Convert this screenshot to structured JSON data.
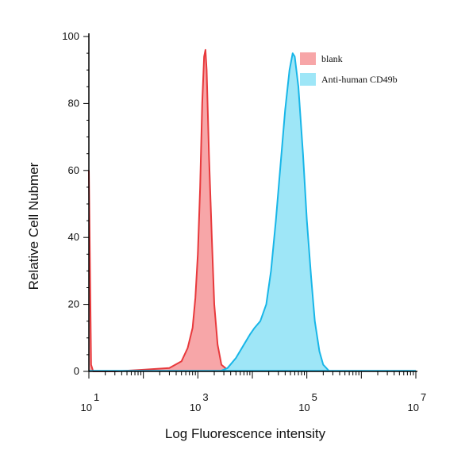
{
  "chart_data": {
    "type": "area",
    "title": "",
    "xlabel": "Log Fluorescence intensity",
    "ylabel": "Relative Cell Nubmer",
    "x_scale": "log",
    "xlim": [
      10,
      10000000
    ],
    "ylim": [
      0,
      100
    ],
    "x_ticks": [
      {
        "value": 10,
        "base": "10",
        "exp": "1"
      },
      {
        "value": 1000,
        "base": "10",
        "exp": "3"
      },
      {
        "value": 100000,
        "base": "10",
        "exp": "5"
      },
      {
        "value": 10000000,
        "base": "10",
        "exp": "7"
      }
    ],
    "y_ticks": [
      0,
      20,
      40,
      60,
      80,
      100
    ],
    "legend_position": "top-right",
    "grid": false,
    "series": [
      {
        "name": "blank",
        "line_color": "#e8393c",
        "fill_color": "#f7a6a8",
        "points": [
          [
            10,
            60
          ],
          [
            11,
            2
          ],
          [
            12,
            0
          ],
          [
            30,
            0
          ],
          [
            100,
            0.5
          ],
          [
            300,
            1
          ],
          [
            500,
            3
          ],
          [
            650,
            7
          ],
          [
            800,
            13
          ],
          [
            900,
            22
          ],
          [
            1000,
            35
          ],
          [
            1100,
            55
          ],
          [
            1200,
            80
          ],
          [
            1300,
            94
          ],
          [
            1380,
            96
          ],
          [
            1450,
            90
          ],
          [
            1600,
            65
          ],
          [
            1800,
            40
          ],
          [
            2000,
            20
          ],
          [
            2300,
            8
          ],
          [
            2700,
            2
          ],
          [
            3500,
            0.5
          ],
          [
            5000,
            0
          ]
        ]
      },
      {
        "name": "Anti-human CD49b",
        "line_color": "#18b6e8",
        "fill_color": "#9ee6f7",
        "points": [
          [
            2500,
            0
          ],
          [
            3500,
            1
          ],
          [
            5000,
            4
          ],
          [
            7000,
            8
          ],
          [
            9000,
            11
          ],
          [
            11000,
            13
          ],
          [
            14000,
            15
          ],
          [
            18000,
            20
          ],
          [
            22000,
            30
          ],
          [
            27000,
            45
          ],
          [
            33000,
            62
          ],
          [
            40000,
            78
          ],
          [
            48000,
            90
          ],
          [
            55000,
            95
          ],
          [
            60000,
            94
          ],
          [
            70000,
            85
          ],
          [
            85000,
            65
          ],
          [
            100000,
            45
          ],
          [
            120000,
            28
          ],
          [
            140000,
            15
          ],
          [
            170000,
            6
          ],
          [
            200000,
            2
          ],
          [
            260000,
            0
          ]
        ]
      }
    ]
  }
}
